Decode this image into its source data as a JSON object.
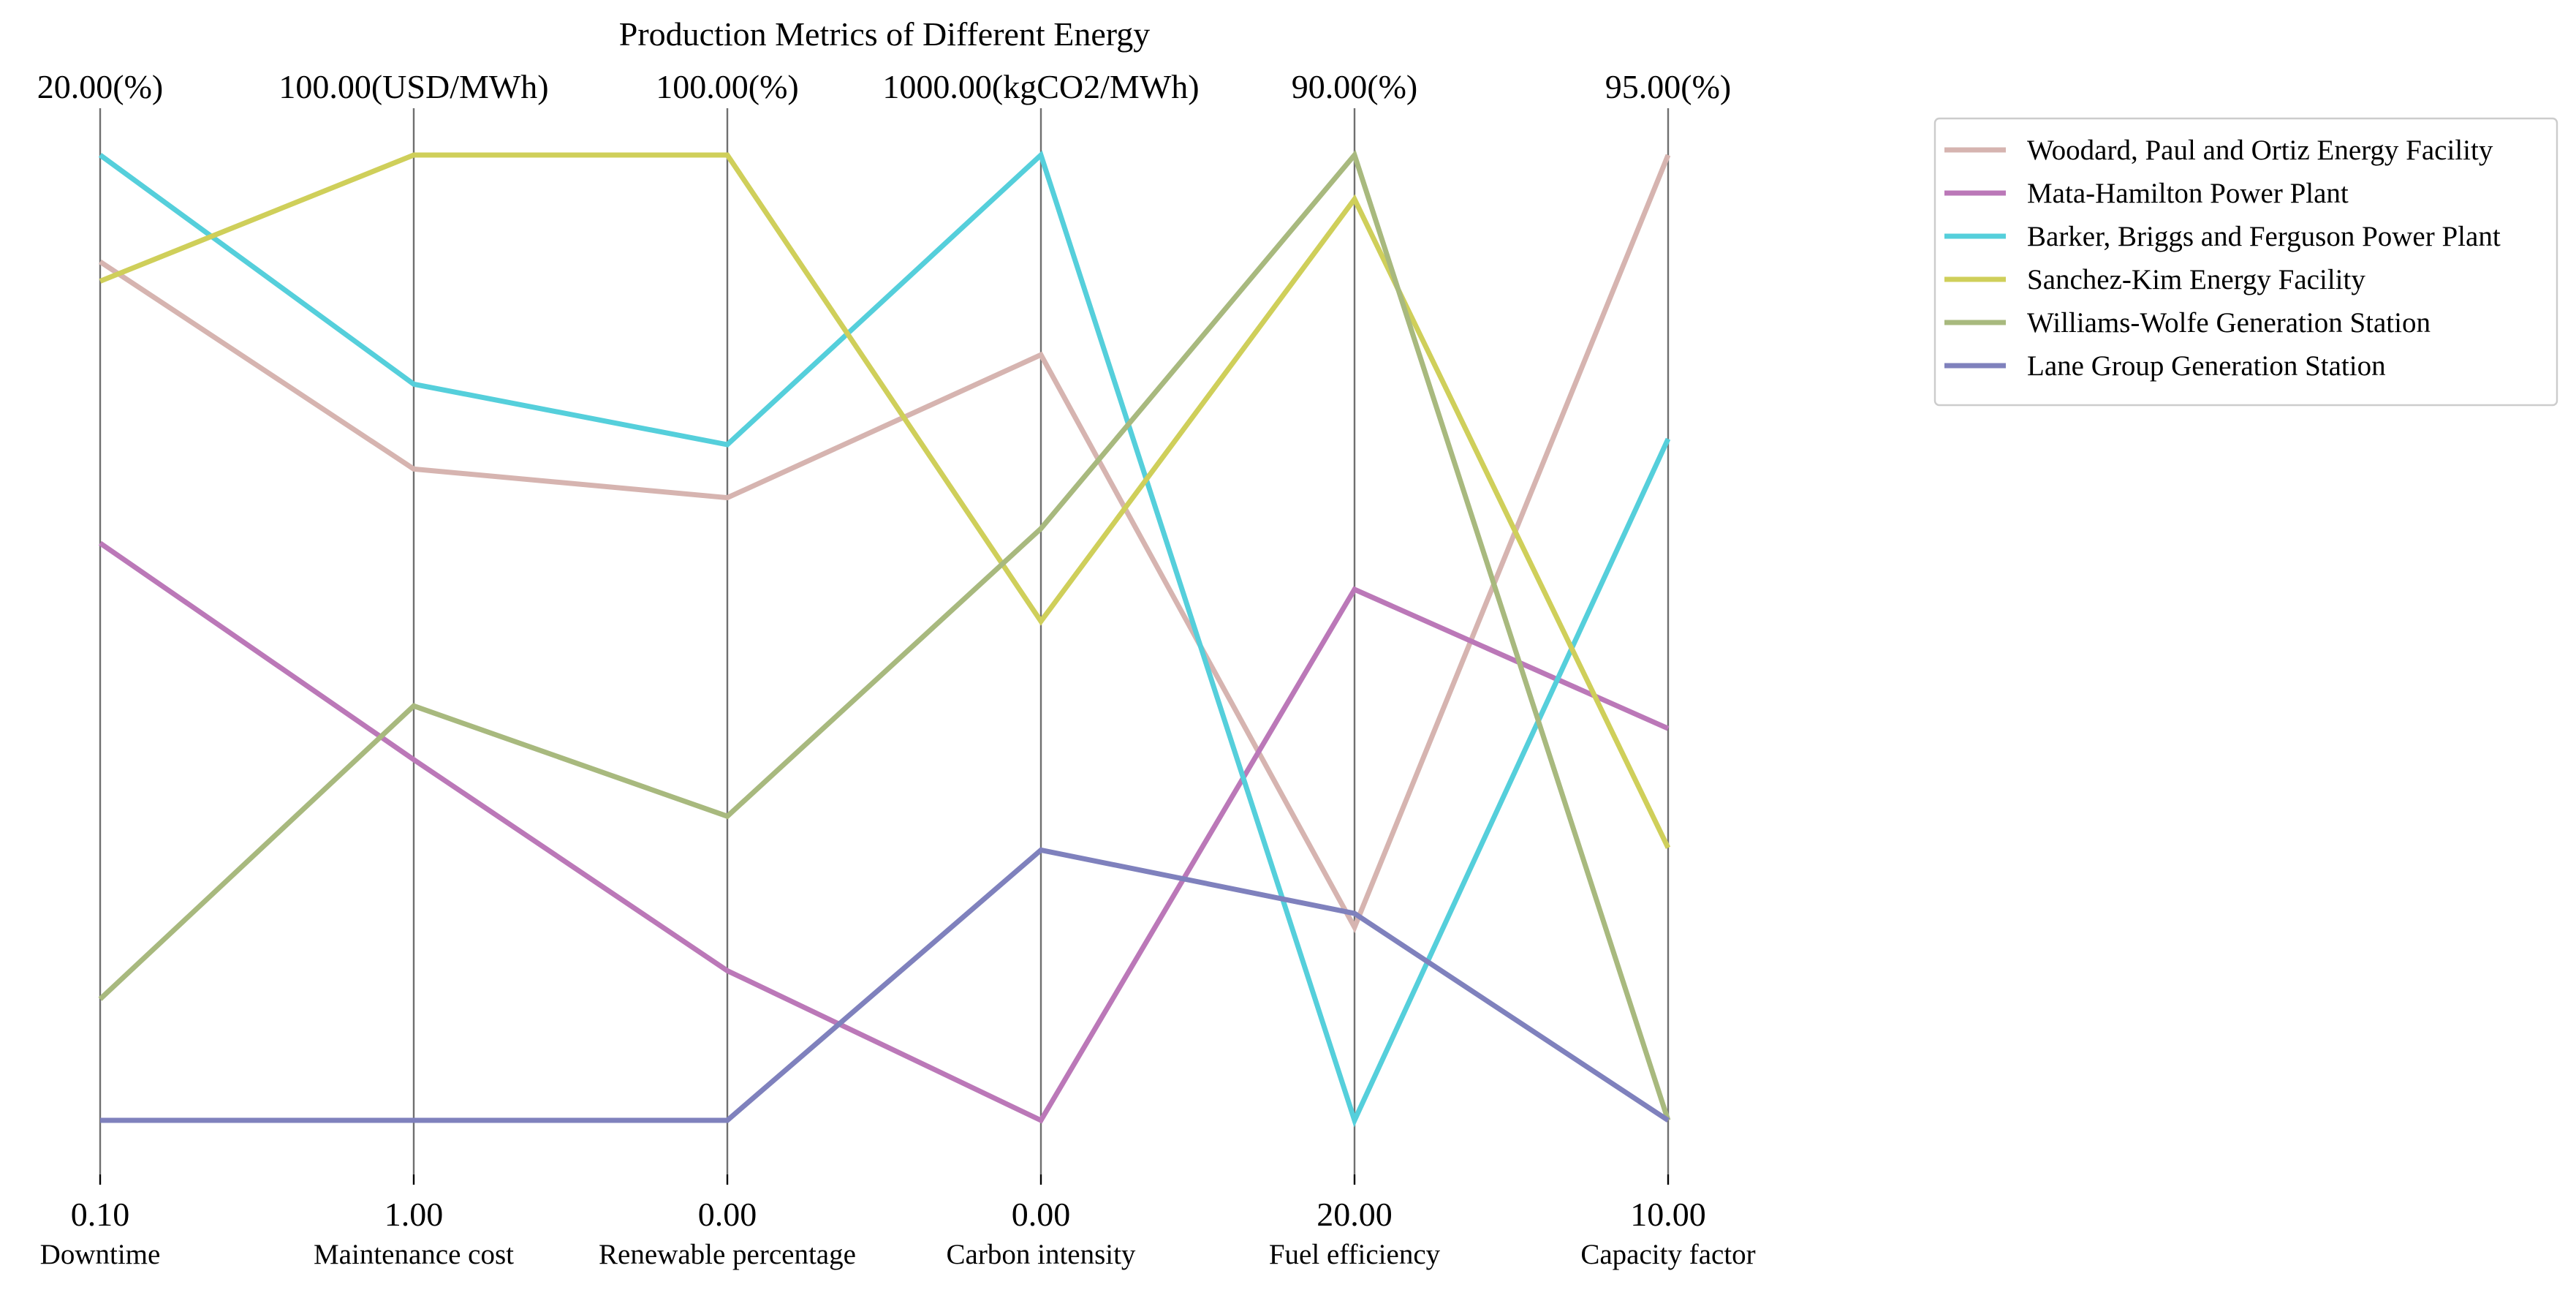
{
  "chart_data": {
    "type": "parallel-coordinates",
    "title": "Production Metrics of Different Energy",
    "axes": [
      {
        "name": "Downtime",
        "min": 0.1,
        "max": 20.0,
        "min_label": "0.10",
        "max_label": "20.00(%)"
      },
      {
        "name": "Maintenance cost",
        "min": 1.0,
        "max": 100.0,
        "min_label": "1.00",
        "max_label": "100.00(USD/MWh)"
      },
      {
        "name": "Renewable percentage",
        "min": 0.0,
        "max": 100.0,
        "min_label": "0.00",
        "max_label": "100.00(%)"
      },
      {
        "name": "Carbon intensity",
        "min": 0.0,
        "max": 1000.0,
        "min_label": "0.00",
        "max_label": "1000.00(kgCO2/MWh)"
      },
      {
        "name": "Fuel efficiency",
        "min": 20.0,
        "max": 90.0,
        "min_label": "20.00",
        "max_label": "90.00(%)"
      },
      {
        "name": "Capacity factor",
        "min": 10.0,
        "max": 95.0,
        "min_label": "10.00",
        "max_label": "95.00(%)"
      }
    ],
    "series": [
      {
        "name": "Woodard, Paul and Ortiz  Energy Facility",
        "color": "#d6b4b0",
        "values": [
          17.8,
          67.8,
          64.5,
          793.0,
          34.0,
          95.0
        ]
      },
      {
        "name": "Mata-Hamilton  Power Plant",
        "color": "#bb78b8",
        "values": [
          12.0,
          38.0,
          15.5,
          0.0,
          58.5,
          44.5
        ]
      },
      {
        "name": "Barker, Briggs and Ferguson  Power Plant",
        "color": "#55cfdb",
        "values": [
          20.0,
          76.5,
          70.0,
          1000.0,
          20.0,
          70.0
        ]
      },
      {
        "name": "Sanchez-Kim  Energy Facility",
        "color": "#cfcf5a",
        "values": [
          17.4,
          100.0,
          100.0,
          517.0,
          86.8,
          34.0
        ]
      },
      {
        "name": "Williams-Wolfe  Generation Station",
        "color": "#a8b97e",
        "values": [
          2.6,
          43.5,
          31.5,
          613.0,
          90.0,
          10.0
        ]
      },
      {
        "name": "Lane Group  Generation Station",
        "color": "#7f81bd",
        "values": [
          0.1,
          1.0,
          0.0,
          280.0,
          35.0,
          10.0
        ]
      }
    ],
    "legend_position": "upper-right",
    "grid": false
  }
}
